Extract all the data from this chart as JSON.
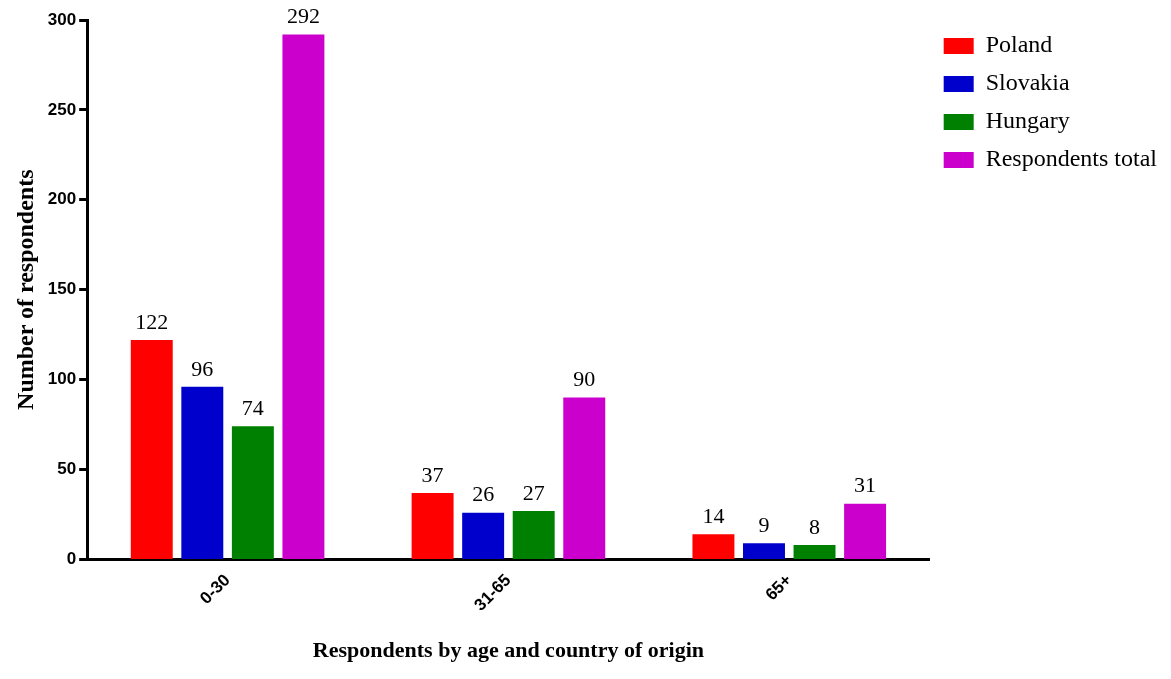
{
  "chart_data": {
    "type": "bar",
    "xlabel": "Respondents by age and country of origin",
    "ylabel": "Number of respondents",
    "categories": [
      "0-30",
      "31-65",
      "65+"
    ],
    "series": [
      {
        "name": "Poland",
        "color": "#ff0000",
        "values": [
          122,
          37,
          14
        ]
      },
      {
        "name": "Slovakia",
        "color": "#0000cc",
        "values": [
          96,
          26,
          9
        ]
      },
      {
        "name": "Hungary",
        "color": "#008000",
        "values": [
          74,
          27,
          8
        ]
      },
      {
        "name": "Respondents total",
        "color": "#cc00cc",
        "values": [
          292,
          90,
          31
        ]
      }
    ],
    "ylim": [
      0,
      300
    ],
    "yticks": [
      0,
      50,
      100,
      150,
      200,
      250,
      300
    ],
    "legend": "right",
    "data_labels": true
  }
}
